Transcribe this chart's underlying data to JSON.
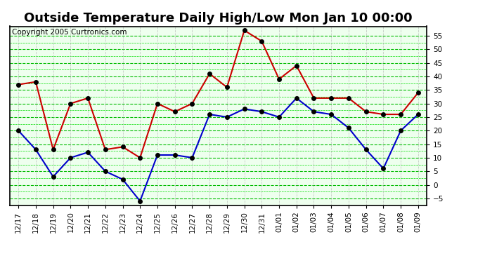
{
  "title": "Outside Temperature Daily High/Low Mon Jan 10 00:00",
  "copyright": "Copyright 2005 Curtronics.com",
  "x_labels": [
    "12/17",
    "12/18",
    "12/19",
    "12/20",
    "12/21",
    "12/22",
    "12/23",
    "12/24",
    "12/25",
    "12/26",
    "12/27",
    "12/28",
    "12/29",
    "12/30",
    "12/31",
    "01/01",
    "01/02",
    "01/03",
    "01/04",
    "01/05",
    "01/06",
    "01/07",
    "01/08",
    "01/09"
  ],
  "high_values": [
    37,
    38,
    13,
    30,
    32,
    13,
    14,
    10,
    30,
    27,
    30,
    41,
    36,
    57,
    53,
    39,
    44,
    32,
    32,
    32,
    27,
    26,
    26,
    34
  ],
  "low_values": [
    20,
    13,
    3,
    10,
    12,
    5,
    2,
    -6,
    11,
    11,
    10,
    26,
    25,
    28,
    27,
    25,
    32,
    27,
    26,
    21,
    13,
    6,
    20,
    26
  ],
  "high_color": "#cc0000",
  "low_color": "#0000cc",
  "marker_color": "#000000",
  "background_color": "#ffffff",
  "plot_bg_color": "#eeffee",
  "grid_color_major": "#00bb00",
  "grid_color_minor": "#00dd00",
  "vgrid_color": "#aaaaaa",
  "ylim": [
    -7.5,
    58.5
  ],
  "yticks": [
    -5.0,
    0.0,
    5.0,
    10.0,
    15.0,
    20.0,
    25.0,
    30.0,
    35.0,
    40.0,
    45.0,
    50.0,
    55.0
  ],
  "title_fontsize": 13,
  "tick_fontsize": 7.5,
  "copyright_fontsize": 7.5,
  "line_width": 1.5,
  "marker_size": 4
}
